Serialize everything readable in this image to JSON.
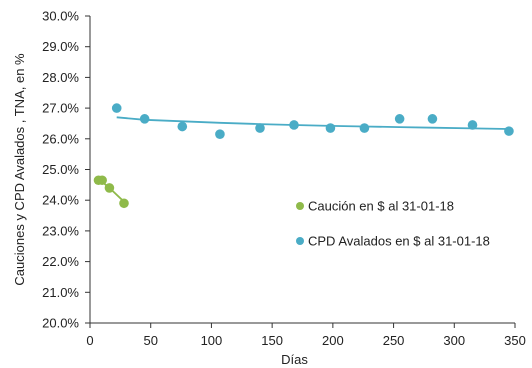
{
  "chart_data": {
    "type": "scatter",
    "title": "",
    "xlabel": "Días",
    "ylabel": "Cauciones y CPD Avalados , TNA, en %",
    "xlim": [
      0,
      350
    ],
    "ylim": [
      20,
      30
    ],
    "x_ticks": [
      0,
      50,
      100,
      150,
      200,
      250,
      300,
      350
    ],
    "y_ticks": [
      20,
      21,
      22,
      23,
      24,
      25,
      26,
      27,
      28,
      29,
      30
    ],
    "x_tick_labels": [
      "0",
      "50",
      "100",
      "150",
      "200",
      "250",
      "300",
      "350"
    ],
    "y_tick_labels": [
      "20.0%",
      "21.0%",
      "22.0%",
      "23.0%",
      "24.0%",
      "25.0%",
      "26.0%",
      "27.0%",
      "28.0%",
      "29.0%",
      "30.0%"
    ],
    "grid": false,
    "legend_position": "right",
    "series": [
      {
        "name": "Caución en $ al 31-01-18",
        "color": "#8fba4a",
        "points": [
          {
            "x": 7,
            "y": 24.65
          },
          {
            "x": 10,
            "y": 24.65
          },
          {
            "x": 16,
            "y": 24.4
          },
          {
            "x": 28,
            "y": 23.9
          }
        ],
        "trend": [
          {
            "x": 7,
            "y": 24.65
          },
          {
            "x": 10,
            "y": 24.6
          },
          {
            "x": 16,
            "y": 24.4
          },
          {
            "x": 28,
            "y": 23.95
          }
        ]
      },
      {
        "name": "CPD Avalados en $ al 31-01-18",
        "color": "#4aacc6",
        "points": [
          {
            "x": 22,
            "y": 27.0
          },
          {
            "x": 45,
            "y": 26.65
          },
          {
            "x": 76,
            "y": 26.4
          },
          {
            "x": 107,
            "y": 26.15
          },
          {
            "x": 140,
            "y": 26.35
          },
          {
            "x": 168,
            "y": 26.45
          },
          {
            "x": 198,
            "y": 26.35
          },
          {
            "x": 226,
            "y": 26.35
          },
          {
            "x": 255,
            "y": 26.65
          },
          {
            "x": 282,
            "y": 26.65
          },
          {
            "x": 315,
            "y": 26.45
          },
          {
            "x": 345,
            "y": 26.25
          }
        ],
        "trend": [
          {
            "x": 22,
            "y": 26.7
          },
          {
            "x": 45,
            "y": 26.62
          },
          {
            "x": 76,
            "y": 26.57
          },
          {
            "x": 107,
            "y": 26.52
          },
          {
            "x": 140,
            "y": 26.48
          },
          {
            "x": 168,
            "y": 26.45
          },
          {
            "x": 198,
            "y": 26.42
          },
          {
            "x": 226,
            "y": 26.4
          },
          {
            "x": 255,
            "y": 26.38
          },
          {
            "x": 282,
            "y": 26.36
          },
          {
            "x": 315,
            "y": 26.34
          },
          {
            "x": 345,
            "y": 26.32
          }
        ]
      }
    ]
  }
}
